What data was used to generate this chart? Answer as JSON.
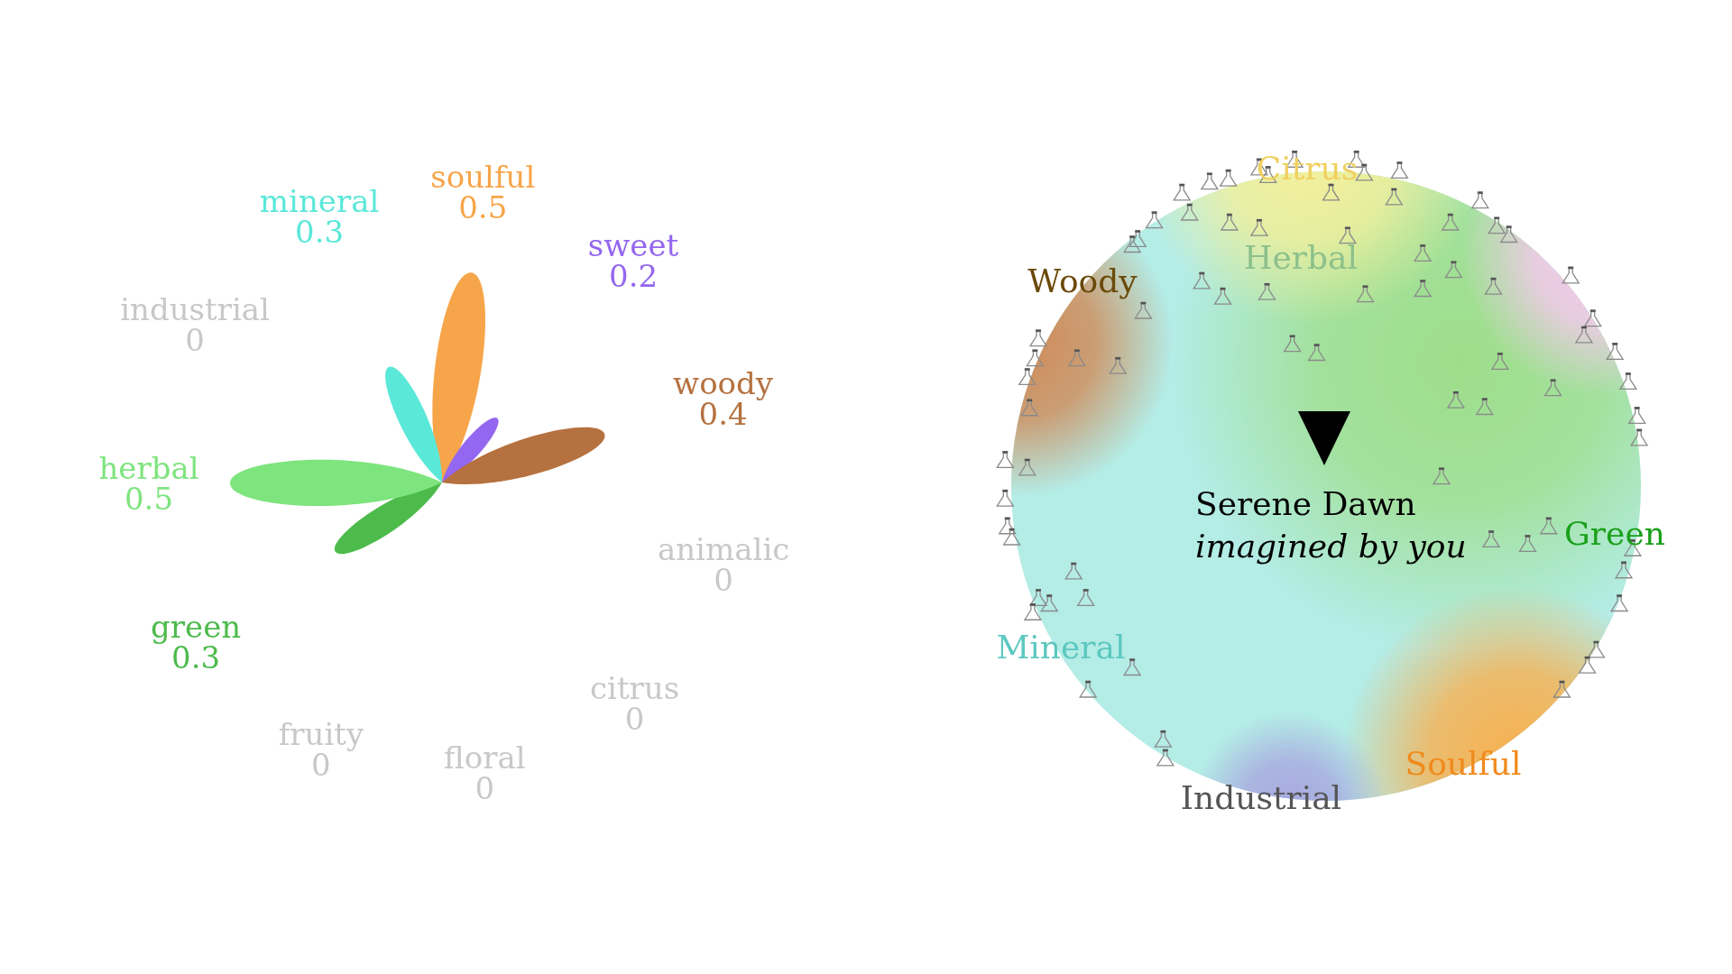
{
  "chart_data": [
    {
      "type": "other",
      "categories": [
        "soulful",
        "sweet",
        "woody",
        "animalic",
        "citrus",
        "floral",
        "fruity",
        "green",
        "herbal",
        "industrial",
        "mineral"
      ],
      "values": [
        0.5,
        0.2,
        0.4,
        0,
        0,
        0,
        0,
        0.3,
        0.5,
        0,
        0.3
      ],
      "colors": [
        "#f7a54a",
        "#9467f0",
        "#b5713f",
        null,
        null,
        null,
        null,
        "#4cbb4c",
        "#7ee47e",
        null,
        "#5ae8d8"
      ],
      "data_labels": true
    },
    {
      "type": "other",
      "title": "Serene Dawn",
      "subtitle": "imagined by you",
      "annotations": [
        "Citrus",
        "Herbal",
        "Woody",
        "Green",
        "Mineral",
        "Soulful",
        "Industrial"
      ]
    }
  ]
}
